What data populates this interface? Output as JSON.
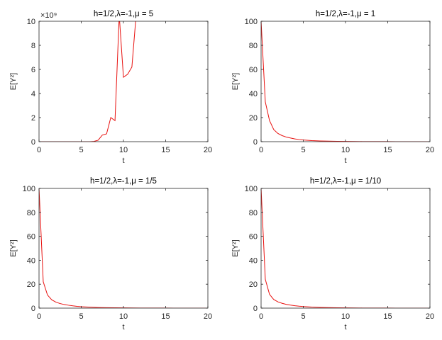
{
  "chart_data": [
    {
      "type": "line",
      "title": "h=1/2,λ=-1,μ = 5",
      "xlabel": "t",
      "ylabel": "E[Y²]",
      "xlim": [
        0,
        20
      ],
      "ylim": [
        0,
        10
      ],
      "xticks": [
        "0",
        "5",
        "10",
        "15",
        "20"
      ],
      "yticks": [
        "0",
        "2",
        "4",
        "6",
        "8",
        "10"
      ],
      "y_exponent_label": "×10⁹",
      "color": "#e8110f",
      "x": [
        0,
        0.5,
        1,
        1.5,
        2,
        2.5,
        3,
        3.5,
        4,
        4.5,
        5,
        5.5,
        6,
        6.5,
        7,
        7.5,
        8,
        8.5,
        9,
        9.5,
        10,
        10.5,
        11,
        11.5,
        11.5,
        12
      ],
      "y": [
        0,
        0,
        0,
        0,
        0,
        0,
        0,
        0,
        0,
        0,
        0,
        0,
        0,
        0.02,
        0.12,
        0.55,
        0.65,
        2.0,
        1.75,
        10.5,
        5.35,
        5.6,
        6.2,
        10.5,
        10.5,
        10.5
      ]
    },
    {
      "type": "line",
      "title": "h=1/2,λ=-1,μ = 1",
      "xlabel": "t",
      "ylabel": "E[Y²]",
      "xlim": [
        0,
        20
      ],
      "ylim": [
        0,
        100
      ],
      "xticks": [
        "0",
        "5",
        "10",
        "15",
        "20"
      ],
      "yticks": [
        "0",
        "20",
        "40",
        "60",
        "80",
        "100"
      ],
      "color": "#e8110f",
      "x": [
        0,
        0.5,
        1,
        1.5,
        2,
        2.5,
        3,
        3.5,
        4,
        4.5,
        5,
        6,
        7,
        8,
        9,
        10,
        11,
        12,
        13,
        14,
        15,
        16,
        17,
        18,
        19,
        20
      ],
      "y": [
        100,
        33,
        17.5,
        10,
        6.8,
        5,
        3.8,
        3,
        2.3,
        1.8,
        1.4,
        0.9,
        0.6,
        0.45,
        0.3,
        0.2,
        0.15,
        0.1,
        0.08,
        0.06,
        0.04,
        0.03,
        0.02,
        0.02,
        0.01,
        0.01
      ]
    },
    {
      "type": "line",
      "title": "h=1/2,λ=-1,μ = 1/5",
      "xlabel": "t",
      "ylabel": "E[Y²]",
      "xlim": [
        0,
        20
      ],
      "ylim": [
        0,
        100
      ],
      "xticks": [
        "0",
        "5",
        "10",
        "15",
        "20"
      ],
      "yticks": [
        "0",
        "20",
        "40",
        "60",
        "80",
        "100"
      ],
      "color": "#e8110f",
      "x": [
        0,
        0.5,
        1,
        1.5,
        2,
        2.5,
        3,
        3.5,
        4,
        4.5,
        5,
        6,
        7,
        8,
        9,
        10,
        11,
        12,
        13,
        14,
        15,
        16,
        17,
        18,
        19,
        20
      ],
      "y": [
        100,
        22,
        11,
        7,
        5,
        3.8,
        3,
        2.4,
        1.9,
        1.5,
        1.2,
        0.8,
        0.55,
        0.4,
        0.28,
        0.2,
        0.14,
        0.1,
        0.07,
        0.05,
        0.04,
        0.03,
        0.02,
        0.02,
        0.01,
        0.01
      ]
    },
    {
      "type": "line",
      "title": "h=1/2,λ=-1,μ = 1/10",
      "xlabel": "t",
      "ylabel": "E[Y²]",
      "xlim": [
        0,
        20
      ],
      "ylim": [
        0,
        100
      ],
      "xticks": [
        "0",
        "5",
        "10",
        "15",
        "20"
      ],
      "yticks": [
        "0",
        "20",
        "40",
        "60",
        "80",
        "100"
      ],
      "color": "#e8110f",
      "x": [
        0,
        0.5,
        1,
        1.5,
        2,
        2.5,
        3,
        3.5,
        4,
        4.5,
        5,
        6,
        7,
        8,
        9,
        10,
        11,
        12,
        13,
        14,
        15,
        16,
        17,
        18,
        19,
        20
      ],
      "y": [
        100,
        24,
        11.5,
        7.2,
        5.2,
        4,
        3.1,
        2.5,
        2,
        1.6,
        1.3,
        0.85,
        0.6,
        0.42,
        0.3,
        0.21,
        0.15,
        0.1,
        0.07,
        0.05,
        0.04,
        0.03,
        0.02,
        0.02,
        0.01,
        0.01
      ]
    }
  ]
}
